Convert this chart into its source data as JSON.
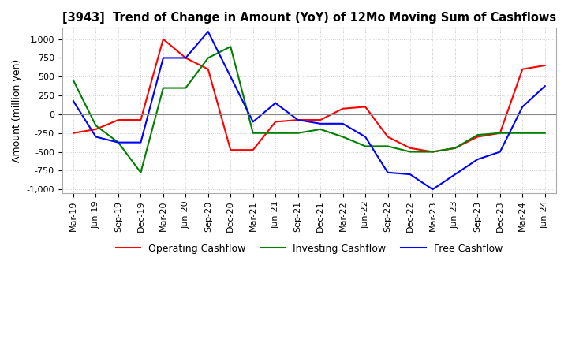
{
  "title": "[3943]  Trend of Change in Amount (YoY) of 12Mo Moving Sum of Cashflows",
  "ylabel": "Amount (million yen)",
  "ylim": [
    -1050,
    1150
  ],
  "yticks": [
    -1000,
    -750,
    -500,
    -250,
    0,
    250,
    500,
    750,
    1000
  ],
  "x_labels": [
    "Mar-19",
    "Jun-19",
    "Sep-19",
    "Dec-19",
    "Mar-20",
    "Jun-20",
    "Sep-20",
    "Dec-20",
    "Mar-21",
    "Jun-21",
    "Sep-21",
    "Dec-21",
    "Mar-22",
    "Jun-22",
    "Sep-22",
    "Dec-22",
    "Mar-23",
    "Jun-23",
    "Sep-23",
    "Dec-23",
    "Mar-24",
    "Jun-24"
  ],
  "operating": [
    -250,
    -200,
    -75,
    -75,
    1000,
    750,
    600,
    -475,
    -475,
    -100,
    -75,
    -75,
    75,
    100,
    -300,
    -450,
    -500,
    -450,
    -300,
    -250,
    600,
    650
  ],
  "investing": [
    450,
    -150,
    -375,
    -775,
    350,
    350,
    750,
    900,
    -250,
    -250,
    -250,
    -200,
    -300,
    -425,
    -425,
    -500,
    -500,
    -450,
    -275,
    -250,
    -250,
    -250
  ],
  "free": [
    175,
    -300,
    -375,
    -375,
    750,
    750,
    1100,
    500,
    -100,
    150,
    -75,
    -125,
    -125,
    -300,
    -775,
    -800,
    -1000,
    -800,
    -600,
    -500,
    100,
    375
  ],
  "colors": {
    "operating": "#ff0000",
    "investing": "#008000",
    "free": "#0000ff"
  },
  "legend": [
    "Operating Cashflow",
    "Investing Cashflow",
    "Free Cashflow"
  ],
  "background": "#ffffff",
  "grid_color": "#cccccc"
}
